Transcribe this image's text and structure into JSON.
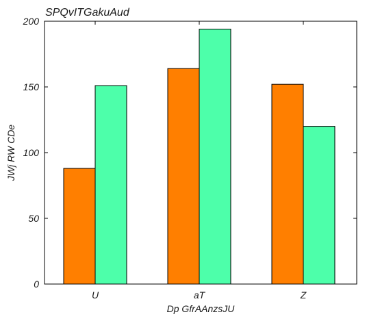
{
  "chart_data": {
    "type": "bar",
    "title": "SPQvITGakuAud",
    "xlabel": "Dp GfrAAnzsJU",
    "ylabel": "JWj RW  CDe",
    "categories": [
      "U",
      "aT",
      "Z"
    ],
    "series": [
      {
        "values": [
          88,
          164,
          152
        ],
        "color": "#ff7f00"
      },
      {
        "values": [
          151,
          194,
          120
        ],
        "color": "#4dffaa"
      }
    ],
    "ylim": [
      0,
      200
    ],
    "yticks": [
      0,
      50,
      100,
      150,
      200
    ],
    "grid": false,
    "legend": "none"
  }
}
